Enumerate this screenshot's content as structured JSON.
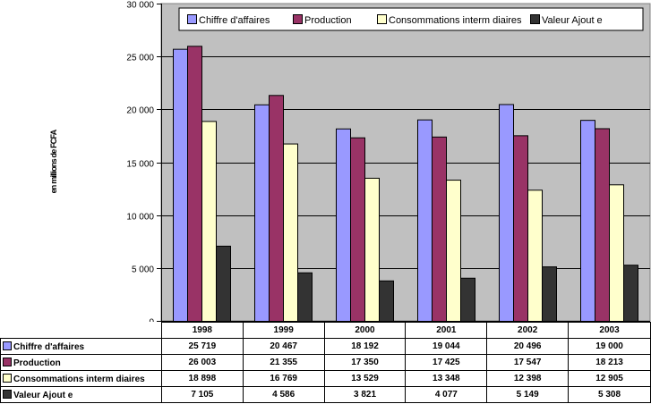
{
  "chart_data": {
    "type": "bar",
    "title": "",
    "xlabel": "",
    "ylabel": "en millions de FCFA",
    "ylim": [
      0,
      30000
    ],
    "yticks": [
      0,
      5000,
      10000,
      15000,
      20000,
      25000,
      30000
    ],
    "ytick_labels": [
      "0",
      "5 000",
      "10 000",
      "15 000",
      "20 000",
      "25 000",
      "30 000"
    ],
    "grid": true,
    "legend_position": "top",
    "categories": [
      "1998",
      "1999",
      "2000",
      "2001",
      "2002",
      "2003"
    ],
    "series": [
      {
        "name": "Chiffre d'affaires",
        "color": "#9999FF",
        "values": [
          25719,
          20467,
          18192,
          19044,
          20496,
          19000
        ],
        "labels": [
          "25 719",
          "20 467",
          "18 192",
          "19 044",
          "20 496",
          "19 000"
        ]
      },
      {
        "name": "Production",
        "color": "#993366",
        "values": [
          26003,
          21355,
          17350,
          17425,
          17547,
          18213
        ],
        "labels": [
          "26 003",
          "21 355",
          "17 350",
          "17 425",
          "17 547",
          "18 213"
        ]
      },
      {
        "name": "Consommations interm diaires",
        "color": "#FFFFCC",
        "values": [
          18898,
          16769,
          13529,
          13348,
          12398,
          12905
        ],
        "labels": [
          "18 898",
          "16 769",
          "13 529",
          "13 348",
          "12 398",
          "12 905"
        ]
      },
      {
        "name": "Valeur Ajout e",
        "color": "#333333",
        "values": [
          7105,
          4586,
          3821,
          4077,
          5149,
          5308
        ],
        "labels": [
          "7 105",
          "4 586",
          "3 821",
          "4 077",
          "5 149",
          "5 308"
        ]
      }
    ],
    "plot_background": "#C0C0C0",
    "data_table": true
  }
}
